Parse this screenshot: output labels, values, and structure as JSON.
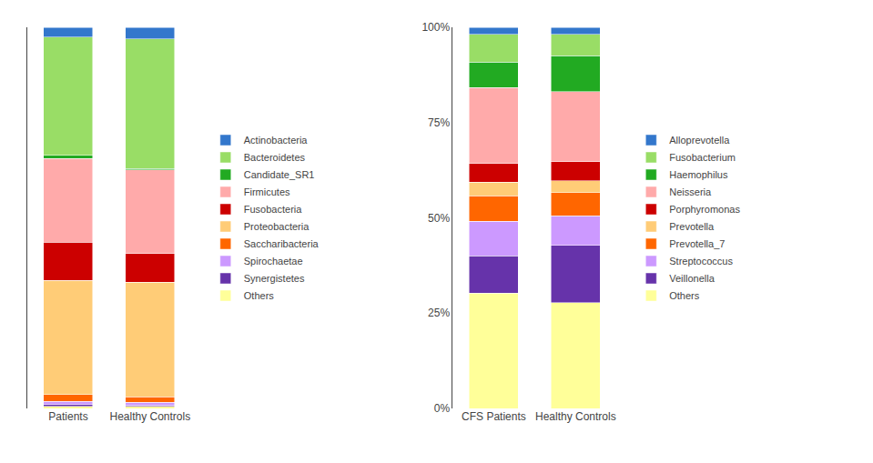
{
  "chart_data": [
    {
      "type": "bar",
      "stacked": true,
      "grid": false,
      "legend": "right",
      "tick_labels": "x",
      "categories": [
        "Patients",
        "Healthy Controls"
      ],
      "ylim": [
        0,
        1.0
      ],
      "series": [
        {
          "name": "Others",
          "color": "#FFFF99",
          "values": [
            0.005,
            0.005
          ]
        },
        {
          "name": "Synergistetes",
          "color": "#6633AA",
          "values": [
            0.005,
            0.003
          ]
        },
        {
          "name": "Spirochaetae",
          "color": "#CC99FF",
          "values": [
            0.008,
            0.008
          ]
        },
        {
          "name": "Saccharibacteria",
          "color": "#FF6600",
          "values": [
            0.018,
            0.015
          ]
        },
        {
          "name": "Proteobacteria",
          "color": "#FFCC77",
          "values": [
            0.3,
            0.3
          ]
        },
        {
          "name": "Fusobacteria",
          "color": "#CC0000",
          "values": [
            0.1,
            0.075
          ]
        },
        {
          "name": "Firmicutes",
          "color": "#FFAAAA",
          "values": [
            0.22,
            0.22
          ]
        },
        {
          "name": "Candidate_SR1",
          "color": "#22AA22",
          "values": [
            0.008,
            0.004
          ]
        },
        {
          "name": "Bacteroidetes",
          "color": "#99DD66",
          "values": [
            0.31,
            0.34
          ]
        },
        {
          "name": "Actinobacteria",
          "color": "#3377CC",
          "values": [
            0.026,
            0.03
          ]
        }
      ]
    },
    {
      "type": "bar",
      "stacked": true,
      "grid": false,
      "legend": "right",
      "categories": [
        "CFS Patients",
        "Healthy Controls"
      ],
      "ylim": [
        0,
        1.0
      ],
      "yticks": [
        {
          "value": 0,
          "label": "0%"
        },
        {
          "value": 0.25,
          "label": "25%"
        },
        {
          "value": 0.5,
          "label": "50%"
        },
        {
          "value": 0.75,
          "label": "75%"
        },
        {
          "value": 1.0,
          "label": "100%"
        }
      ],
      "series": [
        {
          "name": "Others",
          "color": "#FFFF99",
          "values": [
            0.303030303,
            0.2777777778
          ]
        },
        {
          "name": "Veillonella",
          "color": "#6633AA",
          "values": [
            0.096969697,
            0.15
          ]
        },
        {
          "name": "Streptococcus",
          "color": "#CC99FF",
          "values": [
            0.0909090909,
            0.0777777778
          ]
        },
        {
          "name": "Prevotella_7",
          "color": "#FF6600",
          "values": [
            0.0666666667,
            0.0611111111
          ]
        },
        {
          "name": "Prevotella",
          "color": "#FFCC77",
          "values": [
            0.0363636364,
            0.0311111111
          ]
        },
        {
          "name": "Porphyromonas",
          "color": "#CC0000",
          "values": [
            0.0484848485,
            0.05
          ]
        },
        {
          "name": "Neisseria",
          "color": "#FFAAAA",
          "values": [
            0.2,
            0.1833333333
          ]
        },
        {
          "name": "Haemophilus",
          "color": "#22AA22",
          "values": [
            0.0666666667,
            0.0944444444
          ]
        },
        {
          "name": "Fusobacterium",
          "color": "#99DD66",
          "values": [
            0.0727272727,
            0.0555555556
          ]
        },
        {
          "name": "Alloprevotella",
          "color": "#3377CC",
          "values": [
            0.0181818182,
            0.0188888889
          ]
        }
      ]
    }
  ]
}
